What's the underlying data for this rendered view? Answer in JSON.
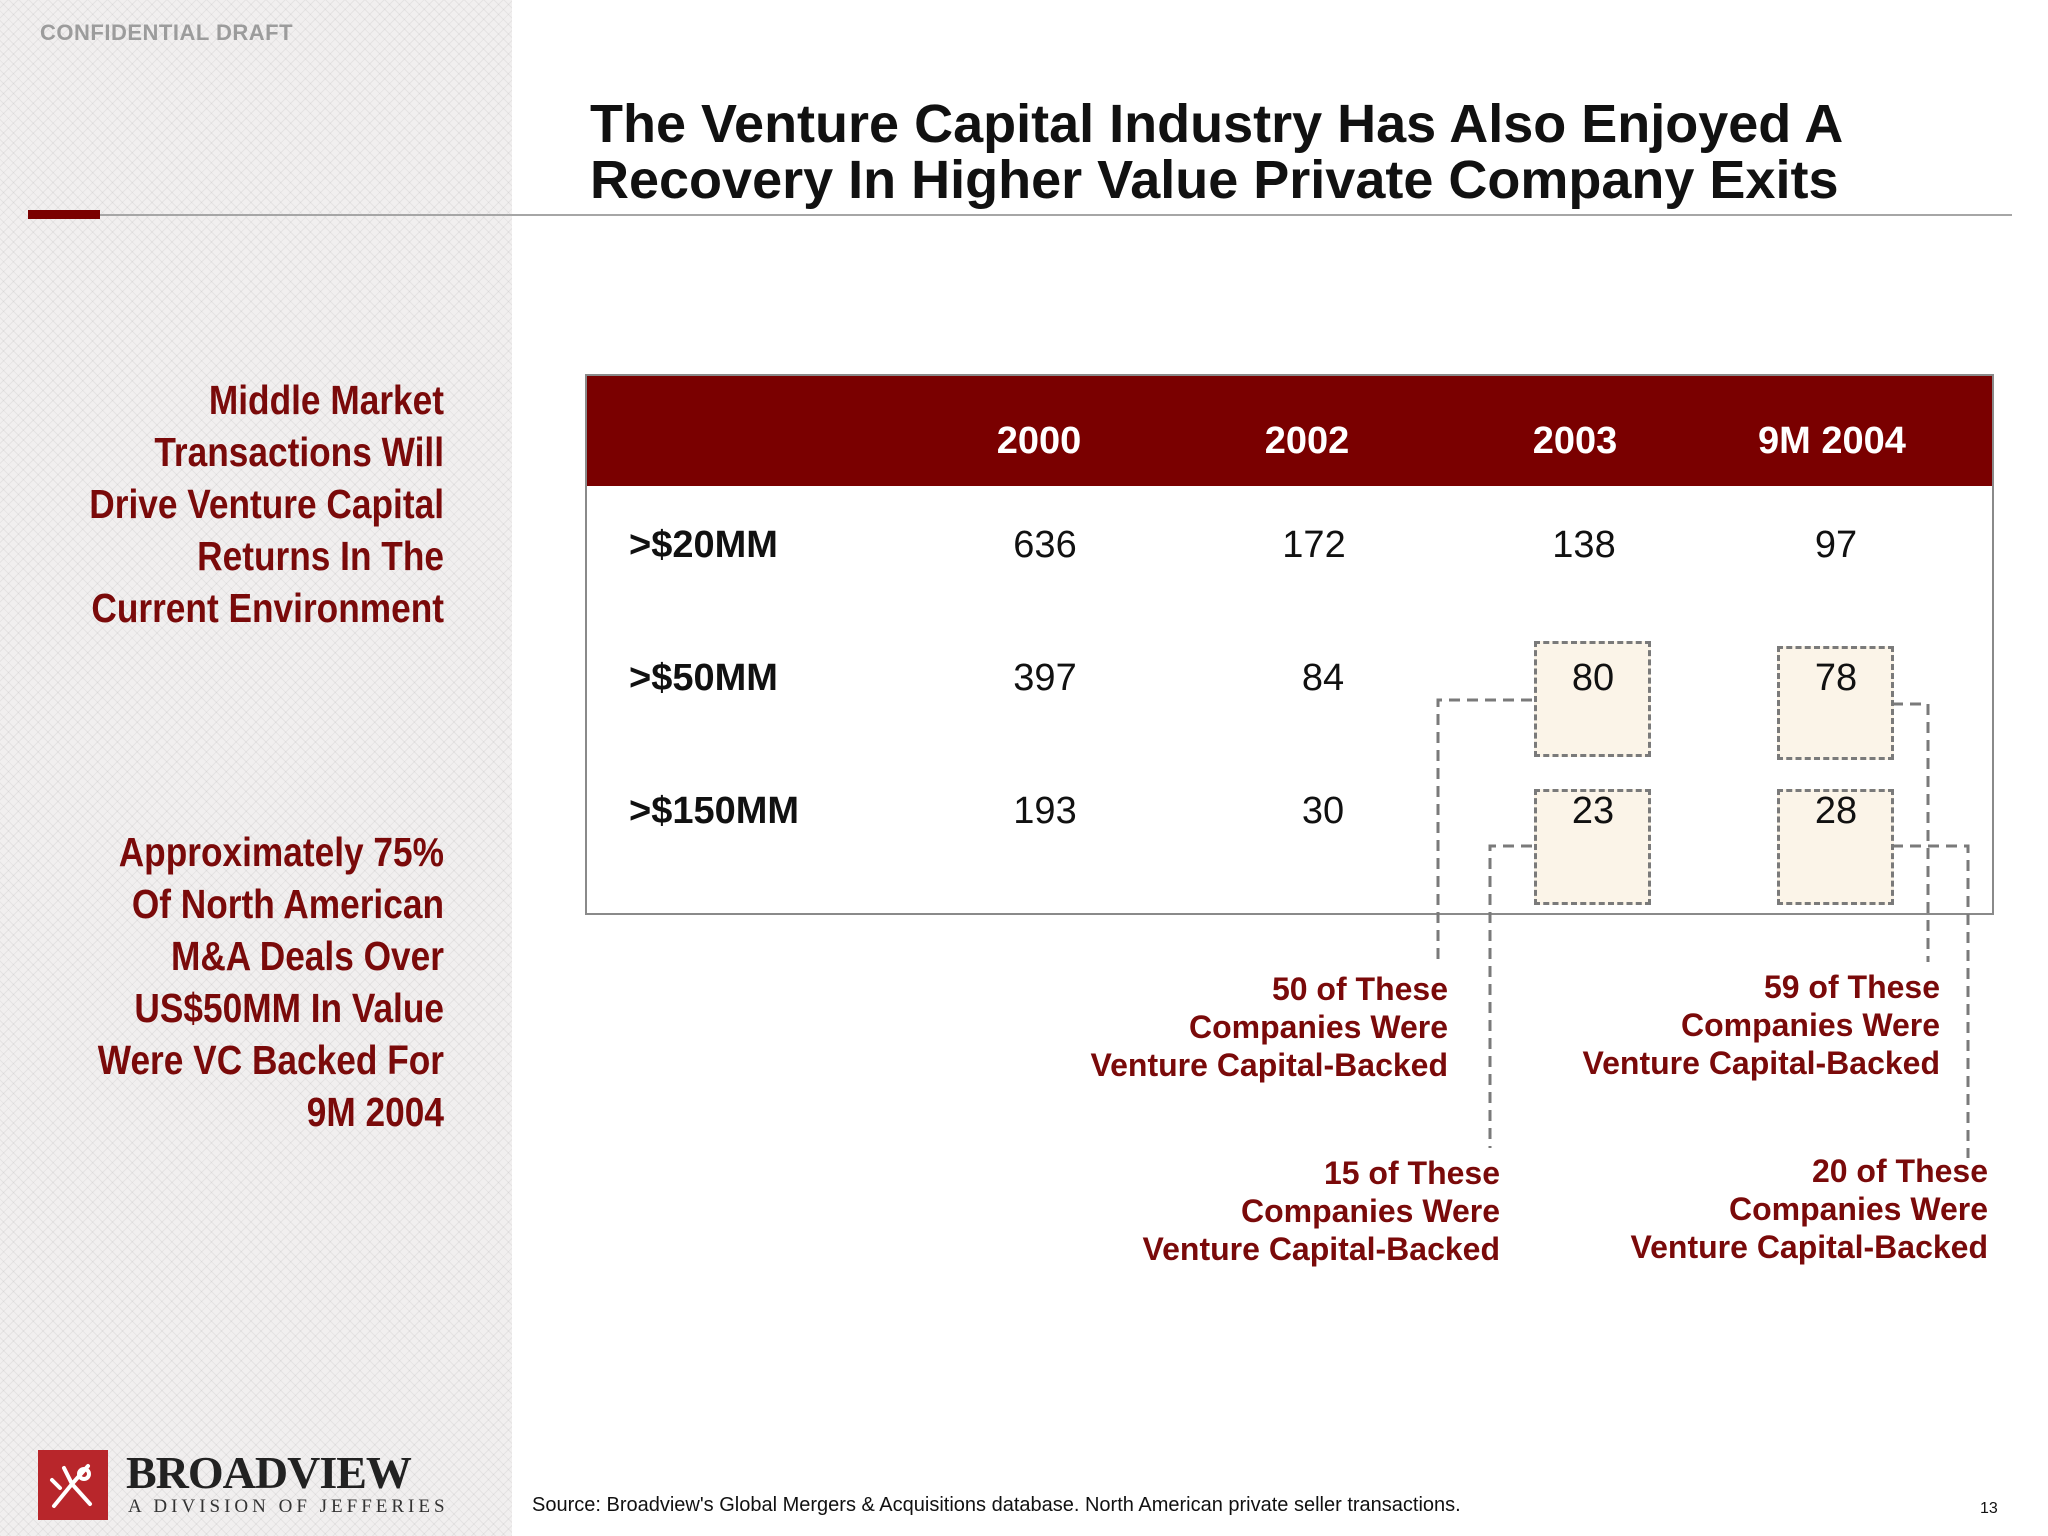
{
  "header": {
    "confidential": "CONFIDENTIAL DRAFT",
    "title_line1": "The Venture Capital Industry Has Also Enjoyed A",
    "title_line2": "Recovery In Higher Value Private Company Exits"
  },
  "sidebar": {
    "text1": [
      "Middle Market",
      "Transactions Will",
      "Drive Venture Capital",
      "Returns In The",
      "Current Environment"
    ],
    "text2": [
      "Approximately 75%",
      "Of North American",
      "M&A Deals Over",
      "US$50MM In Value",
      "Were VC Backed For",
      "9M 2004"
    ]
  },
  "table": {
    "columns": [
      "2000",
      "2002",
      "2003",
      "9M 2004"
    ],
    "rows": [
      {
        "label": ">$20MM",
        "values": [
          "636",
          "172",
          "138",
          "97"
        ]
      },
      {
        "label": ">$50MM",
        "values": [
          "397",
          "84",
          "80",
          "78"
        ]
      },
      {
        "label": ">$150MM",
        "values": [
          "193",
          "30",
          "23",
          "28"
        ]
      }
    ]
  },
  "notes": {
    "n2003_50": [
      "50 of These",
      "Companies Were",
      "Venture Capital-Backed"
    ],
    "n2003_150": [
      "15 of These",
      "Companies Were",
      "Venture Capital-Backed"
    ],
    "n2004_50": [
      "59 of These",
      "Companies Were",
      "Venture Capital-Backed"
    ],
    "n2004_150": [
      "20 of These",
      "Companies Were",
      "Venture Capital-Backed"
    ]
  },
  "footer": {
    "logo_name": "BROADVIEW",
    "logo_sub": "A DIVISION OF JEFFERIES",
    "source": "Source:  Broadview's Global Mergers & Acquisitions database. North American private seller transactions.",
    "page_number": "13"
  },
  "colors": {
    "accent": "#7a0000",
    "note_text": "#7a0a0a",
    "highlight_fill": "#fbf4e8"
  }
}
